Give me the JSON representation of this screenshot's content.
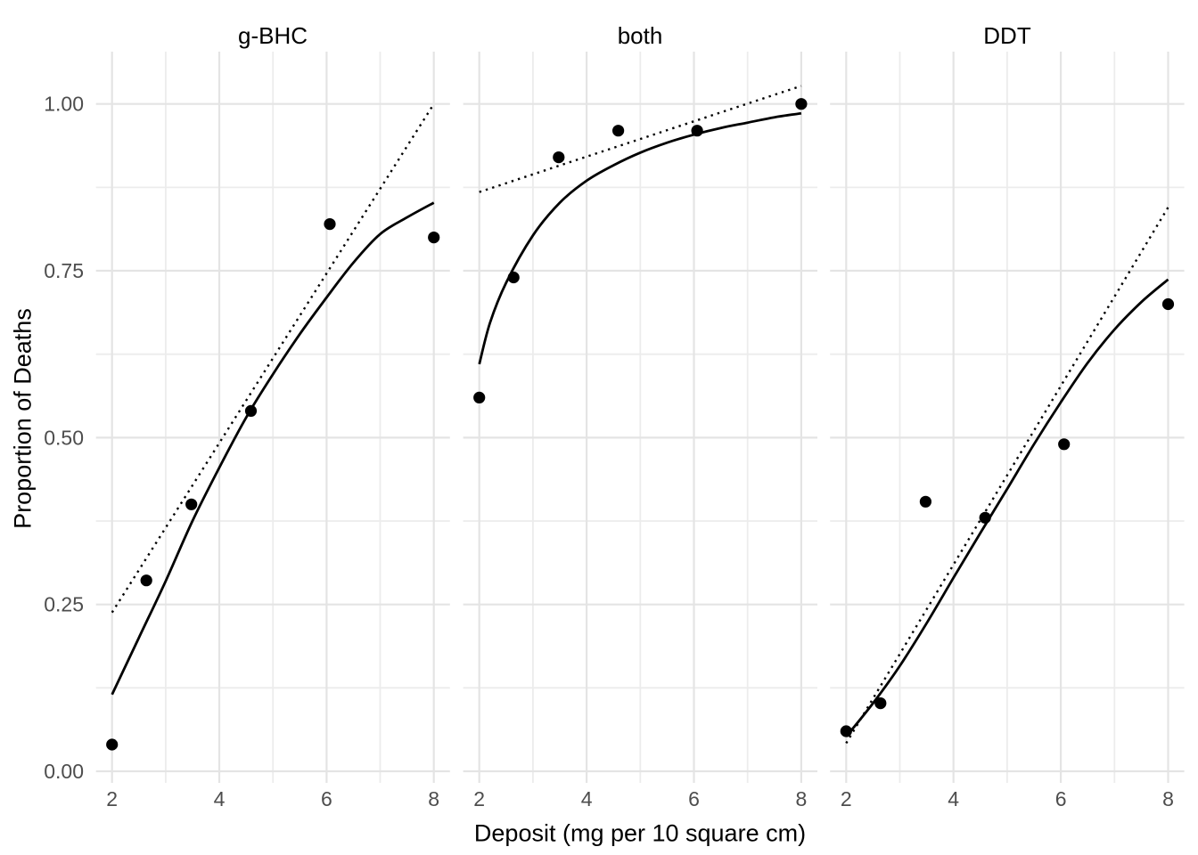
{
  "chart_data": {
    "type": "scatter",
    "title": "",
    "xlabel": "Deposit (mg per 10 square cm)",
    "ylabel": "Proportion of Deaths",
    "xlim": [
      1.7,
      8.3
    ],
    "ylim": [
      -0.02,
      1.075
    ],
    "grid": true,
    "legend": "none",
    "x_ticks": [
      2,
      4,
      6,
      8
    ],
    "x_tick_labels": [
      "2",
      "4",
      "6",
      "8"
    ],
    "x_minor_gridlines": [
      3,
      5,
      7
    ],
    "y_ticks": [
      {
        "value": 1.0,
        "label": "1.00"
      },
      {
        "value": 0.75,
        "label": "0.75"
      },
      {
        "value": 0.5,
        "label": "0.50"
      },
      {
        "value": 0.25,
        "label": "0.25"
      },
      {
        "value": 0.0,
        "label": "0.00"
      }
    ],
    "y_minor_gridlines": [
      0.875,
      0.625,
      0.375,
      0.125
    ],
    "facets": [
      {
        "label": "g-BHC",
        "points": [
          [
            2,
            0.04
          ],
          [
            2.64,
            0.286
          ],
          [
            3.48,
            0.4
          ],
          [
            4.59,
            0.54
          ],
          [
            6.06,
            0.82
          ],
          [
            8,
            0.8
          ]
        ],
        "solid_fit": [
          [
            2,
            0.115
          ],
          [
            2.5,
            0.2
          ],
          [
            3,
            0.285
          ],
          [
            3.5,
            0.375
          ],
          [
            4,
            0.455
          ],
          [
            4.5,
            0.53
          ],
          [
            5,
            0.595
          ],
          [
            5.5,
            0.655
          ],
          [
            6,
            0.71
          ],
          [
            6.5,
            0.762
          ],
          [
            7,
            0.805
          ],
          [
            7.5,
            0.83
          ],
          [
            8,
            0.852
          ]
        ],
        "dotted_fit": [
          [
            2,
            0.238
          ],
          [
            8,
            1.0
          ]
        ]
      },
      {
        "label": "both",
        "points": [
          [
            2,
            0.56
          ],
          [
            2.64,
            0.74
          ],
          [
            3.48,
            0.92
          ],
          [
            4.59,
            0.96
          ],
          [
            6.06,
            0.96
          ],
          [
            8,
            1.0
          ]
        ],
        "solid_fit": [
          [
            2,
            0.61
          ],
          [
            2.2,
            0.672
          ],
          [
            2.5,
            0.732
          ],
          [
            3,
            0.803
          ],
          [
            3.5,
            0.852
          ],
          [
            4,
            0.885
          ],
          [
            4.5,
            0.908
          ],
          [
            5,
            0.927
          ],
          [
            5.5,
            0.942
          ],
          [
            6,
            0.954
          ],
          [
            6.5,
            0.964
          ],
          [
            7,
            0.972
          ],
          [
            7.5,
            0.98
          ],
          [
            8,
            0.986
          ]
        ],
        "dotted_fit": [
          [
            2,
            0.868
          ],
          [
            8,
            1.027
          ]
        ]
      },
      {
        "label": "DDT",
        "points": [
          [
            2,
            0.06
          ],
          [
            2.64,
            0.102
          ],
          [
            3.48,
            0.404
          ],
          [
            4.59,
            0.38
          ],
          [
            6.06,
            0.49
          ],
          [
            8,
            0.7
          ]
        ],
        "solid_fit": [
          [
            2,
            0.052
          ],
          [
            2.5,
            0.102
          ],
          [
            3,
            0.158
          ],
          [
            3.5,
            0.222
          ],
          [
            4,
            0.29
          ],
          [
            4.5,
            0.357
          ],
          [
            5,
            0.423
          ],
          [
            5.5,
            0.49
          ],
          [
            6,
            0.553
          ],
          [
            6.5,
            0.612
          ],
          [
            7,
            0.662
          ],
          [
            7.5,
            0.703
          ],
          [
            8,
            0.737
          ]
        ],
        "dotted_fit": [
          [
            2,
            0.042
          ],
          [
            8,
            0.845
          ]
        ]
      }
    ]
  },
  "style": {
    "background": "#FFFFFF",
    "point_color": "#000000",
    "solid_line_color": "#000000",
    "dotted_line_color": "#000000",
    "grid_major_color": "#E4E4E4",
    "grid_minor_color": "#ECECEC",
    "tick_label_color": "#4D4D4D",
    "title_color": "#000000"
  }
}
